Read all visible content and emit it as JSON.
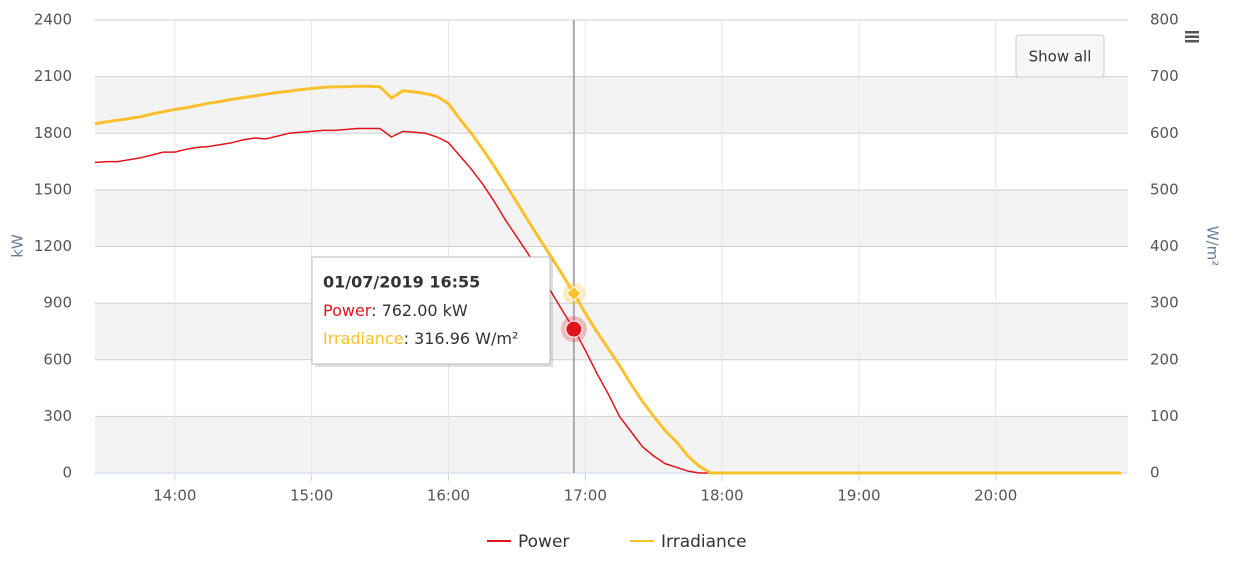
{
  "chart_data": {
    "type": "line",
    "x": [
      "13:25",
      "13:30",
      "13:35",
      "13:40",
      "13:45",
      "13:50",
      "13:55",
      "14:00",
      "14:05",
      "14:10",
      "14:15",
      "14:20",
      "14:25",
      "14:30",
      "14:35",
      "14:40",
      "14:45",
      "14:50",
      "14:55",
      "15:00",
      "15:05",
      "15:10",
      "15:15",
      "15:20",
      "15:25",
      "15:30",
      "15:35",
      "15:40",
      "15:45",
      "15:50",
      "15:55",
      "16:00",
      "16:05",
      "16:10",
      "16:15",
      "16:20",
      "16:25",
      "16:30",
      "16:35",
      "16:40",
      "16:45",
      "16:50",
      "16:55",
      "17:00",
      "17:05",
      "17:10",
      "17:15",
      "17:20",
      "17:25",
      "17:30",
      "17:35",
      "17:40",
      "17:45",
      "17:50",
      "17:55",
      "18:00",
      "20:55"
    ],
    "xlim": [
      "13:25",
      "20:58"
    ],
    "xticks": [
      "14:00",
      "15:00",
      "16:00",
      "17:00",
      "18:00",
      "19:00",
      "20:00"
    ],
    "ylabel": "kW",
    "y2label": "W/m²",
    "ylim": [
      0,
      2400
    ],
    "yticks": [
      0,
      300,
      600,
      900,
      1200,
      1500,
      1800,
      2100,
      2400
    ],
    "y2lim": [
      0,
      800
    ],
    "y2ticks": [
      0,
      100,
      200,
      300,
      400,
      500,
      600,
      700,
      800
    ],
    "grid": true,
    "band_color": "#f3f3f3",
    "legend": "bottom",
    "series": [
      {
        "name": "Power",
        "color": "#e0141e",
        "axis": "y",
        "values": [
          1645,
          1650,
          1650,
          1660,
          1670,
          1685,
          1700,
          1700,
          1715,
          1725,
          1730,
          1740,
          1750,
          1765,
          1775,
          1770,
          1785,
          1800,
          1805,
          1810,
          1815,
          1815,
          1820,
          1825,
          1825,
          1825,
          1780,
          1810,
          1805,
          1800,
          1780,
          1750,
          1680,
          1610,
          1530,
          1440,
          1340,
          1250,
          1160,
          1060,
          960,
          860,
          762,
          650,
          530,
          420,
          300,
          220,
          140,
          90,
          50,
          30,
          10,
          0,
          0,
          0,
          0
        ]
      },
      {
        "name": "Irradiance",
        "color": "#fbc02d",
        "axis": "y2",
        "values": [
          617,
          620,
          623,
          626,
          629,
          634,
          638,
          642,
          645,
          649,
          653,
          656,
          660,
          663,
          666,
          669,
          672,
          674,
          677,
          679,
          681,
          682,
          682,
          683,
          683,
          682,
          662,
          675,
          673,
          670,
          665,
          652,
          625,
          600,
          572,
          542,
          510,
          478,
          445,
          413,
          382,
          350,
          316.96,
          282,
          250,
          220,
          190,
          157,
          127,
          100,
          75,
          55,
          30,
          12,
          0,
          0,
          0
        ]
      }
    ],
    "tooltip": {
      "x": "16:55",
      "title": "01/07/2019 16:55",
      "values": [
        762,
        316.96
      ],
      "value_labels": [
        ": 762.00 kW",
        ": 316.96 W/m²"
      ]
    },
    "button": "Show all"
  }
}
